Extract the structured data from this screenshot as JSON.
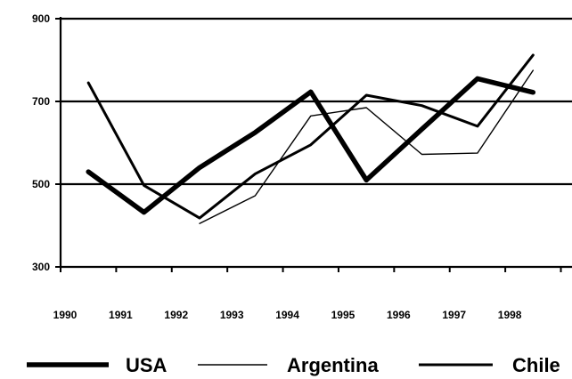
{
  "chart_data": {
    "type": "line",
    "title": "",
    "xlabel": "",
    "ylabel": "",
    "ylim": [
      300,
      900
    ],
    "yticks": [
      "300",
      "500",
      "700",
      "900"
    ],
    "xticks": [
      "1990",
      "1991",
      "1992",
      "1993",
      "1994",
      "1995",
      "1996",
      "1997",
      "1998"
    ],
    "xlim": [
      1990,
      1999.2
    ],
    "grid": "horizontal at 500, 700, 900",
    "legend_position": "bottom",
    "series": [
      {
        "name": "USA",
        "color": "#000000",
        "style": "thick",
        "x": [
          1990.5,
          1991.5,
          1992.5,
          1993.5,
          1994.5,
          1995.5,
          1996.5,
          1997.5,
          1998.5
        ],
        "values": [
          530,
          432,
          540,
          625,
          723,
          510,
          633,
          755,
          722
        ]
      },
      {
        "name": "Argentina",
        "color": "#000000",
        "style": "thin",
        "x": [
          1992.5,
          1993.5,
          1994.5,
          1995.5,
          1996.5,
          1997.5,
          1998.5
        ],
        "values": [
          405,
          472,
          665,
          685,
          572,
          575,
          775
        ]
      },
      {
        "name": "Chile",
        "color": "#000000",
        "style": "medium",
        "x": [
          1990.5,
          1991.5,
          1992.5,
          1993.5,
          1994.5,
          1995.5,
          1996.5,
          1997.5,
          1998.5
        ],
        "values": [
          745,
          497,
          418,
          525,
          595,
          715,
          690,
          640,
          812
        ]
      }
    ]
  }
}
